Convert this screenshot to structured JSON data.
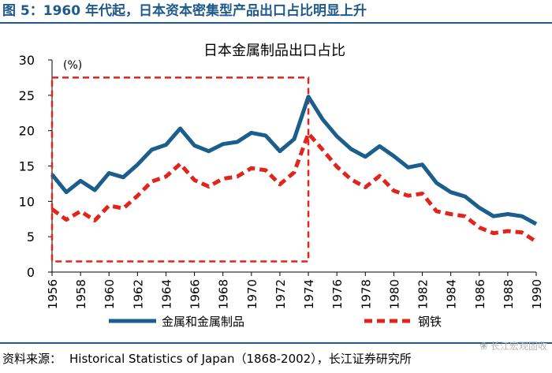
{
  "figure": {
    "label": "图 5：1960 年代起，日本资本密集型产品出口占比明显上升",
    "source_prefix": "资料来源：",
    "source_text": "Historical Statistics of Japan（1868-2002），长江证券研究所",
    "watermark": "长江宏观固收"
  },
  "chart_data": {
    "type": "line",
    "title": "日本金属制品出口占比",
    "unit_label": "(%)",
    "xlabel": "",
    "ylabel": "",
    "ylim": [
      0,
      30
    ],
    "xlim": [
      1956,
      1990
    ],
    "yticks": [
      "0",
      "5",
      "10",
      "15",
      "20",
      "25",
      "30"
    ],
    "xticks": [
      "1956",
      "1958",
      "1960",
      "1962",
      "1964",
      "1966",
      "1968",
      "1970",
      "1972",
      "1974",
      "1976",
      "1978",
      "1980",
      "1982",
      "1984",
      "1986",
      "1988",
      "1990"
    ],
    "x": [
      1956,
      1957,
      1958,
      1959,
      1960,
      1961,
      1962,
      1963,
      1964,
      1965,
      1966,
      1967,
      1968,
      1969,
      1970,
      1971,
      1972,
      1973,
      1974,
      1975,
      1976,
      1977,
      1978,
      1979,
      1980,
      1981,
      1982,
      1983,
      1984,
      1985,
      1986,
      1987,
      1988,
      1989,
      1990
    ],
    "series": [
      {
        "name": "金属和金属制品",
        "color": "#1b5e8c",
        "style": "solid",
        "values": [
          13.8,
          11.3,
          12.9,
          11.6,
          14.0,
          13.4,
          15.2,
          17.3,
          18.0,
          20.3,
          17.9,
          17.1,
          18.1,
          18.4,
          19.7,
          19.3,
          17.1,
          18.8,
          24.8,
          21.6,
          19.2,
          17.4,
          16.3,
          17.8,
          16.4,
          14.8,
          15.2,
          12.6,
          11.3,
          10.7,
          9.1,
          7.9,
          8.2,
          7.9,
          6.8
        ]
      },
      {
        "name": "钢铁",
        "color": "#e0261c",
        "style": "dashed",
        "values": [
          8.9,
          7.4,
          8.6,
          7.3,
          9.4,
          9.0,
          10.8,
          12.8,
          13.5,
          15.3,
          13.0,
          12.1,
          13.2,
          13.5,
          14.7,
          14.4,
          12.4,
          14.1,
          19.6,
          17.3,
          14.9,
          13.1,
          12.0,
          13.6,
          11.5,
          10.8,
          11.1,
          8.6,
          8.2,
          7.9,
          6.3,
          5.5,
          5.8,
          5.6,
          4.3
        ]
      }
    ],
    "highlight_box": {
      "x_range": [
        1956,
        1974
      ],
      "y_range": [
        1.5,
        27.5
      ],
      "color": "#e0261c",
      "style": "dashed"
    },
    "legend_position": "bottom"
  }
}
